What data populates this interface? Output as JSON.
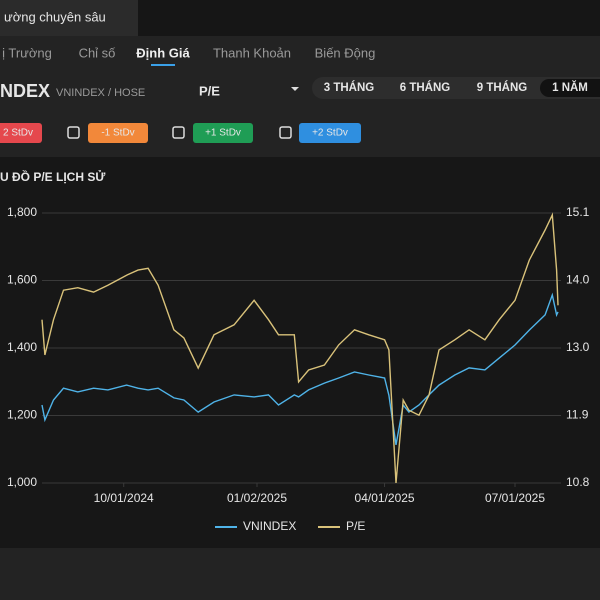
{
  "header": {
    "title": "ường chuyên sâu"
  },
  "tabs": {
    "items": [
      "ị Trường",
      "Chỉ số",
      "Định Giá",
      "Thanh Khoản",
      "Biến Động"
    ],
    "active": 2
  },
  "instrument": {
    "symbol": "NDEX",
    "exchange": "VNINDEX / HOSE",
    "metric": "P/E"
  },
  "periods": {
    "items": [
      "3 THÁNG",
      "6 THÁNG",
      "9 THÁNG",
      "1 NĂM"
    ],
    "active": 3
  },
  "bands": [
    {
      "label": "2 StDv",
      "color": "#e5484d"
    },
    {
      "label": "-1 StDv",
      "color": "#f2883a"
    },
    {
      "label": "+1 StDv",
      "color": "#1f9d55"
    },
    {
      "label": "+2 StDv",
      "color": "#2f8fe0"
    }
  ],
  "chart_data": {
    "type": "line",
    "title": "U ĐỒ P/E LỊCH SỬ",
    "x": [
      "08/05/2024",
      "08/07/2024",
      "08/13/2024",
      "08/20/2024",
      "08/30/2024",
      "09/10/2024",
      "09/20/2024",
      "10/03/2024",
      "10/11/2024",
      "10/18/2024",
      "10/25/2024",
      "11/05/2024",
      "11/12/2024",
      "11/22/2024",
      "12/03/2024",
      "12/17/2024",
      "12/31/2024",
      "01/10/2025",
      "01/17/2025",
      "01/28/2025",
      "01/31/2025",
      "02/07/2025",
      "02/18/2025",
      "02/28/2025",
      "03/11/2025",
      "03/21/2025",
      "04/01/2025",
      "04/04/2025",
      "04/09/2025",
      "04/14/2025",
      "04/18/2025",
      "04/25/2025",
      "05/02/2025",
      "05/09/2025",
      "05/20/2025",
      "05/30/2025",
      "06/10/2025",
      "06/20/2025",
      "07/01/2025",
      "07/11/2025",
      "07/22/2025",
      "07/27/2025",
      "07/30/2025",
      "07/31/2025"
    ],
    "series": [
      {
        "name": "VNINDEX",
        "color": "#4fb3e8",
        "values": [
          1231,
          1187,
          1246,
          1281,
          1270,
          1281,
          1276,
          1290,
          1281,
          1276,
          1281,
          1252,
          1246,
          1210,
          1240,
          1261,
          1255,
          1261,
          1231,
          1261,
          1255,
          1276,
          1296,
          1311,
          1329,
          1320,
          1311,
          1260,
          1113,
          1231,
          1210,
          1231,
          1261,
          1290,
          1320,
          1341,
          1335,
          1370,
          1409,
          1453,
          1498,
          1557,
          1498,
          1507
        ]
      },
      {
        "name": "P/E",
        "color": "#d9c27a",
        "axis": "y2",
        "values": [
          13.4,
          12.84,
          13.4,
          13.87,
          13.91,
          13.84,
          13.95,
          14.11,
          14.19,
          14.22,
          13.95,
          13.24,
          13.11,
          12.63,
          13.16,
          13.32,
          13.71,
          13.4,
          13.16,
          13.16,
          12.41,
          12.6,
          12.68,
          13.0,
          13.24,
          13.16,
          13.08,
          12.92,
          10.8,
          12.12,
          11.96,
          11.88,
          12.2,
          12.92,
          13.08,
          13.24,
          13.08,
          13.4,
          13.71,
          14.35,
          14.83,
          15.07,
          14.19,
          13.63
        ]
      }
    ],
    "xlim": [
      "08/05/2024",
      "07/31/2025"
    ],
    "xticks": [
      "10/01/2024",
      "01/02/2025",
      "04/01/2025",
      "07/01/2025"
    ],
    "ylim": [
      1000,
      1800
    ],
    "yticks": [
      {
        "value": 1000,
        "label": "1,000"
      },
      {
        "value": 1200,
        "label": "1,200"
      },
      {
        "value": 1400,
        "label": "1,400"
      },
      {
        "value": 1600,
        "label": "1,600"
      },
      {
        "value": 1800,
        "label": "1,800"
      }
    ],
    "y2lim": [
      10.8,
      15.1
    ],
    "y2ticks": [
      10.8,
      {
        "value": 11.875,
        "label": "11.9"
      },
      {
        "value": 12.95,
        "label": "13.0"
      },
      {
        "value": 14.025,
        "label": "14.0"
      },
      15.1
    ],
    "grid": true,
    "legend": "bottom"
  }
}
